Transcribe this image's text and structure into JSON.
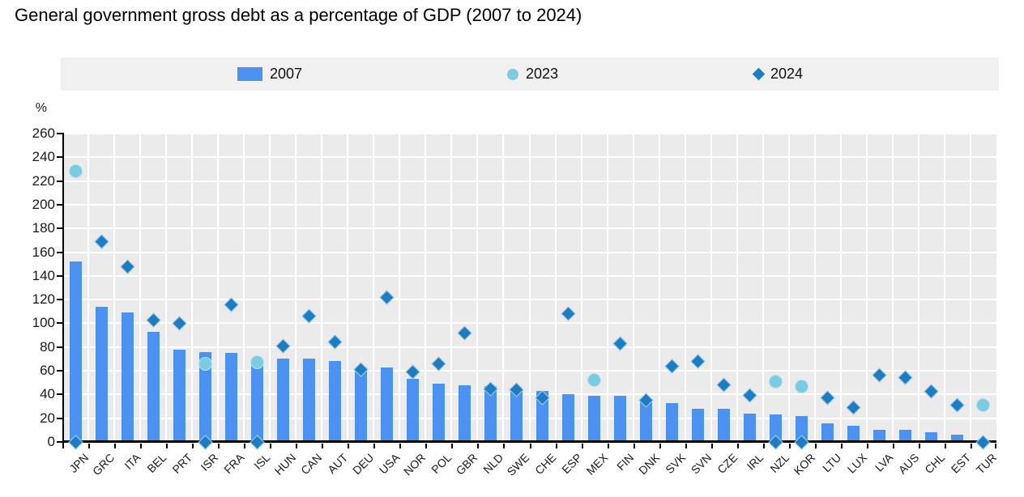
{
  "title": "General government gross debt as a percentage of GDP (2007 to 2024)",
  "colors": {
    "bar_2007": "#4e92f0",
    "circle_2023": "#7ccbe0",
    "diamond_2024": "#1e7dc2",
    "plot_background": "#ebebeb",
    "legend_background": "#f0f0f0",
    "gridline": "#ffffff",
    "axis": "#000000"
  },
  "legend": {
    "items": [
      {
        "label": "2007",
        "marker": "bar-swatch"
      },
      {
        "label": "2023",
        "marker": "circle-swatch"
      },
      {
        "label": "2024",
        "marker": "diamond-swatch"
      }
    ]
  },
  "y_axis": {
    "unit_label": "%",
    "min": 0,
    "max": 260,
    "step": 20,
    "ticks": [
      0,
      20,
      40,
      60,
      80,
      100,
      120,
      140,
      160,
      180,
      200,
      220,
      240,
      260
    ]
  },
  "chart_data": {
    "type": "bar",
    "title": "General government gross debt as a percentage of GDP (2007 to 2024)",
    "xlabel": "",
    "ylabel": "%",
    "ylim": [
      0,
      260
    ],
    "grid": true,
    "legend_position": "top",
    "categories": [
      "JPN",
      "GRC",
      "ITA",
      "BEL",
      "PRT",
      "ISR",
      "FRA",
      "ISL",
      "HUN",
      "CAN",
      "AUT",
      "DEU",
      "USA",
      "NOR",
      "POL",
      "GBR",
      "NLD",
      "SWE",
      "CHE",
      "ESP",
      "MEX",
      "FIN",
      "DNK",
      "SVK",
      "SVN",
      "CZE",
      "IRL",
      "NZL",
      "KOR",
      "LTU",
      "LUX",
      "LVA",
      "AUS",
      "CHL",
      "EST",
      "TUR"
    ],
    "series": [
      {
        "name": "2007",
        "type": "bar",
        "values": [
          152,
          114,
          109,
          93,
          78,
          76,
          75,
          70,
          70,
          70,
          68,
          63,
          63,
          53,
          49,
          48,
          47,
          45,
          43,
          40,
          39,
          39,
          34,
          33,
          28,
          28,
          24,
          23,
          22,
          16,
          14,
          10,
          10,
          8,
          6,
          null
        ]
      },
      {
        "name": "2023",
        "type": "scatter-circle",
        "values": [
          228,
          null,
          null,
          null,
          null,
          66,
          null,
          67,
          null,
          null,
          null,
          null,
          null,
          null,
          null,
          null,
          null,
          null,
          null,
          null,
          52,
          null,
          null,
          null,
          null,
          null,
          null,
          51,
          47,
          null,
          null,
          null,
          null,
          null,
          null,
          31
        ]
      },
      {
        "name": "2024",
        "type": "scatter-diamond",
        "values": [
          0,
          169,
          148,
          103,
          100,
          0,
          116,
          0,
          81,
          106,
          84,
          61,
          122,
          59,
          66,
          92,
          45,
          44,
          37,
          108,
          null,
          83,
          35,
          64,
          68,
          48,
          39,
          0,
          0,
          37,
          29,
          56,
          54,
          43,
          31,
          0
        ]
      }
    ]
  }
}
